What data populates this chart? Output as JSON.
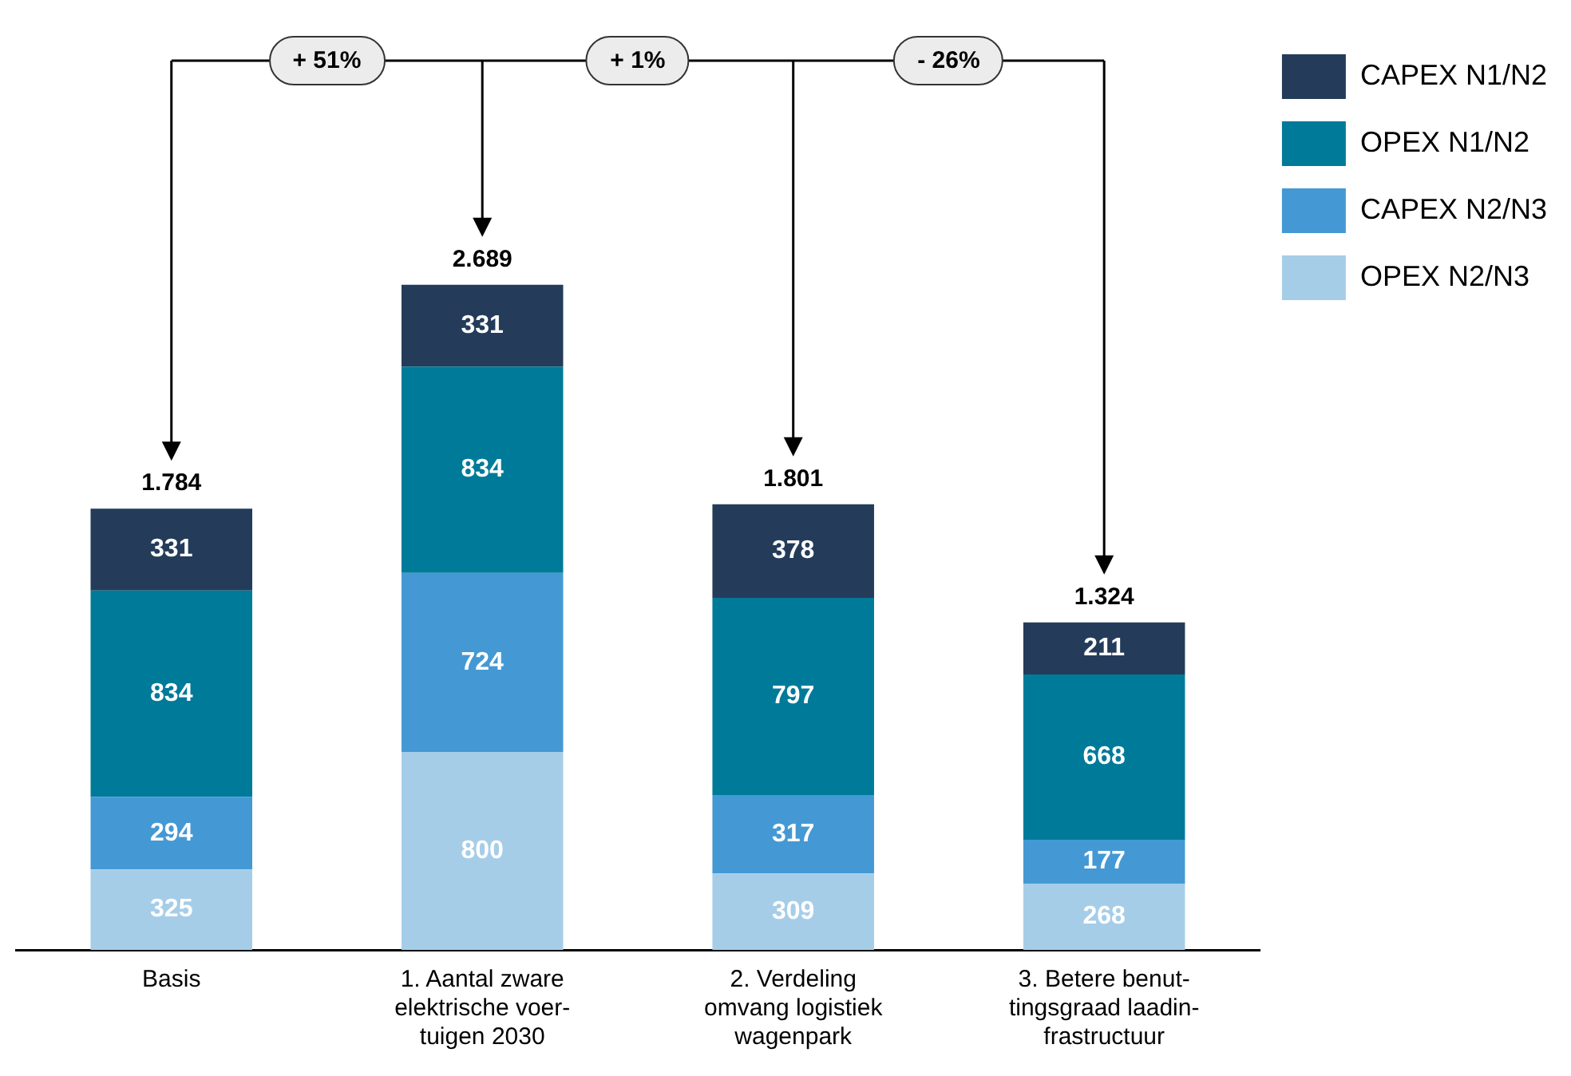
{
  "chart_data": {
    "type": "bar",
    "stacked": true,
    "categories": [
      "Basis",
      "1. Aantal zware\nelektrische voer-\ntuigen 2030",
      "2. Verdeling\nomvang logistiek\nwagenpark",
      "3. Betere benut-\ntingsgraad laadin-\nfrastructuur"
    ],
    "series": [
      {
        "name": "OPEX N2/N3",
        "color": "#a6cde8",
        "values": [
          325,
          800,
          309,
          268
        ]
      },
      {
        "name": "CAPEX N2/N3",
        "color": "#4499d4",
        "values": [
          294,
          724,
          317,
          177
        ]
      },
      {
        "name": "OPEX N1/N2",
        "color": "#007a99",
        "values": [
          834,
          834,
          797,
          668
        ]
      },
      {
        "name": "CAPEX N1/N2",
        "color": "#243c5a",
        "values": [
          331,
          331,
          378,
          211
        ]
      }
    ],
    "data_labels": true,
    "totals": [
      "1.784",
      "2.689",
      "1.801",
      "1.324"
    ],
    "annotations": [
      "+ 51%",
      "+ 1%",
      "- 26%"
    ],
    "legend": "top right",
    "tick_labels": "x"
  }
}
